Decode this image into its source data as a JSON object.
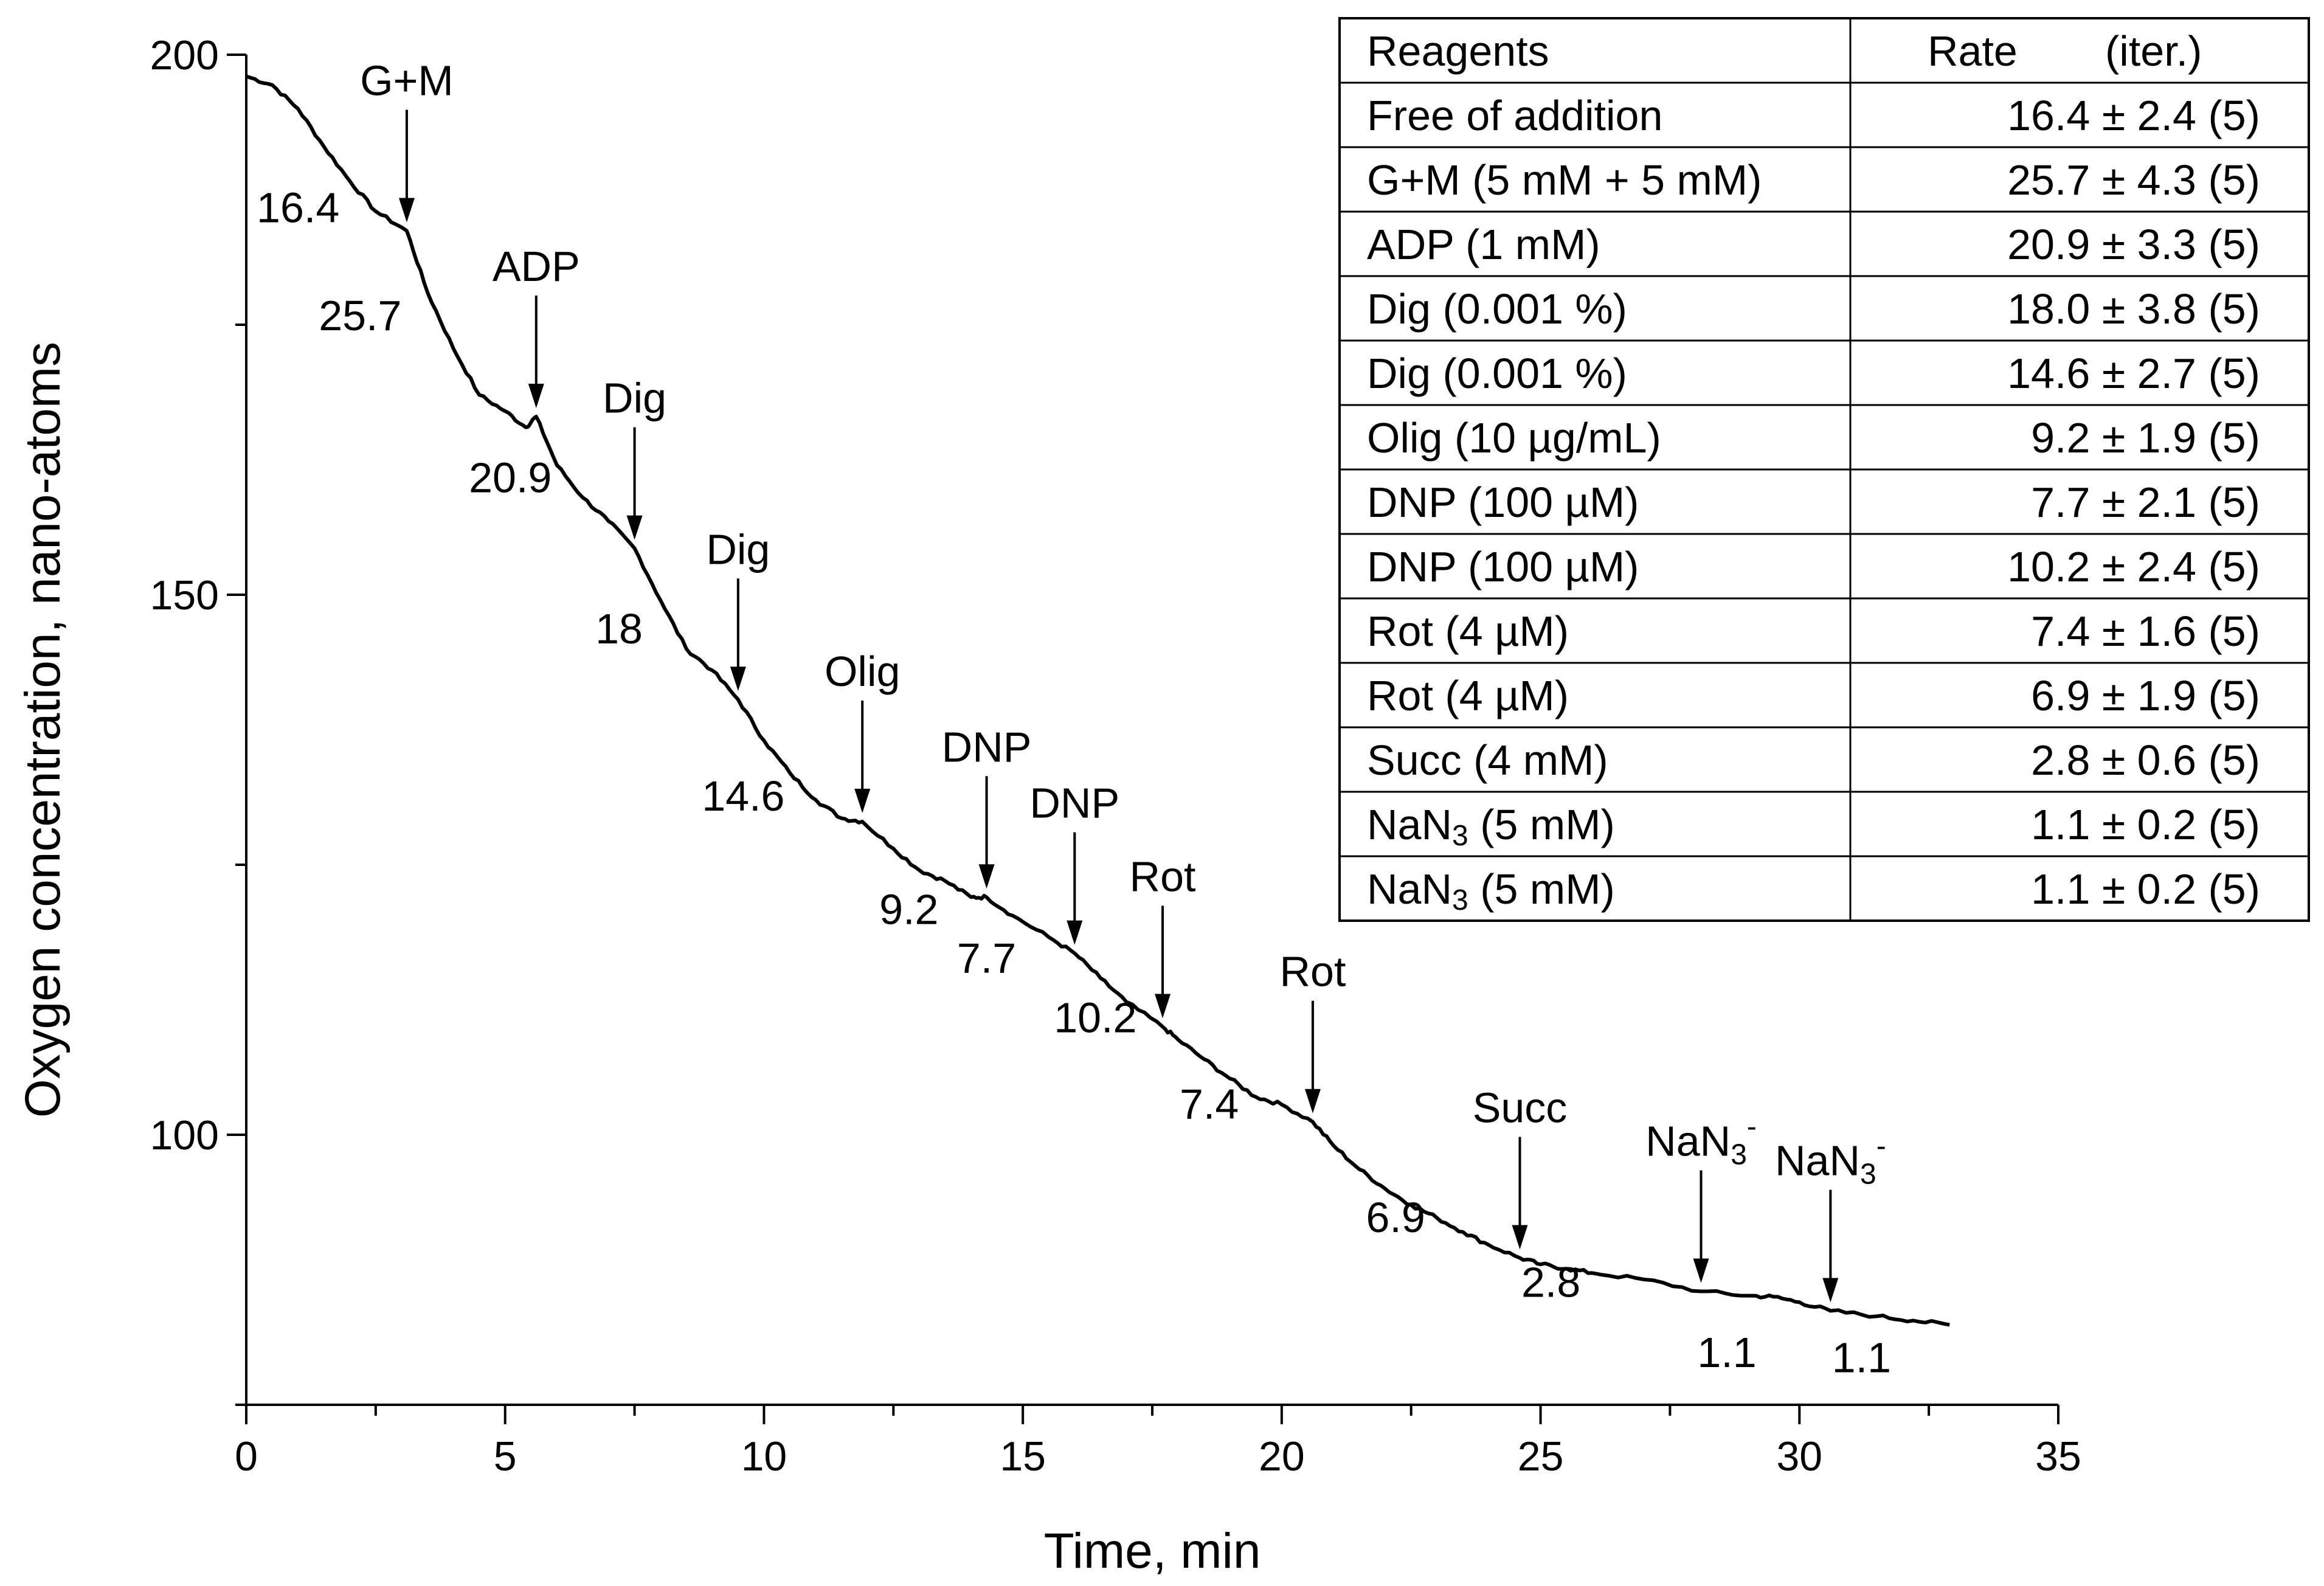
{
  "chart_data": {
    "type": "line",
    "title": "",
    "xlabel": "Time, min",
    "ylabel": "Oxygen concentration, nano-atoms",
    "xlim": [
      0,
      35
    ],
    "ylim": [
      75,
      200
    ],
    "xticks": [
      "0",
      "5",
      "10",
      "15",
      "20",
      "25",
      "30",
      "35"
    ],
    "yticks": [
      "100",
      "150",
      "200"
    ],
    "series": [
      {
        "name": "oxygen",
        "x": [
          0,
          0.5,
          1,
          1.5,
          2,
          2.5,
          3.1,
          3.5,
          4,
          4.5,
          5,
          5.4,
          5.6,
          6,
          6.5,
          7,
          7.5,
          8,
          8.5,
          9,
          9.5,
          10,
          10.5,
          11,
          11.5,
          11.9,
          12.5,
          13,
          13.5,
          14,
          14.3,
          14.8,
          15.5,
          16,
          16.5,
          17,
          17.7,
          18,
          18.5,
          19,
          19.5,
          20,
          20.6,
          21,
          21.5,
          22,
          22.5,
          23,
          23.5,
          24,
          24.6,
          25,
          25.5,
          26,
          27,
          28.1,
          29,
          29.5,
          30,
          30.6,
          31.5,
          32.2,
          32.9
        ],
        "y": [
          198,
          197.2,
          195,
          191.5,
          188.3,
          185.5,
          183.7,
          178,
          172.8,
          168.5,
          167,
          165.5,
          166.5,
          162,
          159,
          156.8,
          154.3,
          149.5,
          145,
          143,
          140.3,
          136.5,
          133.5,
          131,
          129.3,
          129,
          126.5,
          124.5,
          123.5,
          122,
          122,
          120.3,
          118.3,
          116.8,
          114.5,
          112.3,
          110,
          108.8,
          107,
          105.2,
          103.5,
          102.8,
          101.2,
          99,
          96.8,
          95,
          93.5,
          92.3,
          91,
          89.8,
          88.6,
          88,
          87.6,
          87.2,
          86.6,
          85.5,
          85.1,
          85,
          84.5,
          83.7,
          83.2,
          82.8,
          82.4
        ]
      }
    ],
    "annotations": [
      {
        "label": "G+M",
        "sub": "",
        "sup": "",
        "x": 3.1
      },
      {
        "label": "ADP",
        "sub": "",
        "sup": "",
        "x": 5.6
      },
      {
        "label": "Dig",
        "sub": "",
        "sup": "",
        "x": 7.5
      },
      {
        "label": "Dig",
        "sub": "",
        "sup": "",
        "x": 9.5
      },
      {
        "label": "Olig",
        "sub": "",
        "sup": "",
        "x": 11.9
      },
      {
        "label": "DNP",
        "sub": "",
        "sup": "",
        "x": 14.3
      },
      {
        "label": "DNP",
        "sub": "",
        "sup": "",
        "x": 16.0
      },
      {
        "label": "Rot",
        "sub": "",
        "sup": "",
        "x": 17.7
      },
      {
        "label": "Rot",
        "sub": "",
        "sup": "",
        "x": 20.6
      },
      {
        "label": "Succ",
        "sub": "",
        "sup": "",
        "x": 24.6
      },
      {
        "label": "NaN",
        "sub": "3",
        "sup": "-",
        "x": 28.1
      },
      {
        "label": "NaN",
        "sub": "3",
        "sup": "-",
        "x": 30.6
      }
    ],
    "rate_labels": [
      {
        "text": "16.4",
        "x": 1.0,
        "y": 184.5
      },
      {
        "text": "25.7",
        "x": 2.2,
        "y": 174.5
      },
      {
        "text": "20.9",
        "x": 5.1,
        "y": 159.5
      },
      {
        "text": "18",
        "x": 7.2,
        "y": 145.5
      },
      {
        "text": "14.6",
        "x": 9.6,
        "y": 130.0
      },
      {
        "text": "9.2",
        "x": 12.8,
        "y": 119.5
      },
      {
        "text": "7.7",
        "x": 14.3,
        "y": 115.0
      },
      {
        "text": "10.2",
        "x": 16.4,
        "y": 109.5
      },
      {
        "text": "7.4",
        "x": 18.6,
        "y": 101.5
      },
      {
        "text": "6.9",
        "x": 22.2,
        "y": 91.0
      },
      {
        "text": "2.8",
        "x": 25.2,
        "y": 85.0
      },
      {
        "text": "1.1",
        "x": 28.6,
        "y": 78.5
      },
      {
        "text": "1.1",
        "x": 31.2,
        "y": 78.0
      }
    ]
  },
  "table": {
    "headers": [
      "Reagents",
      "Rate",
      "(iter.)"
    ],
    "rows": [
      {
        "reagent": "Free of addition",
        "sub": "",
        "rest": "",
        "rate": "16.4 ± 2.4 (5)"
      },
      {
        "reagent": "G+M (5 mM + 5 mM)",
        "sub": "",
        "rest": "",
        "rate": "25.7 ± 4.3 (5)"
      },
      {
        "reagent": "ADP (1 mM)",
        "sub": "",
        "rest": "",
        "rate": "20.9 ± 3.3 (5)"
      },
      {
        "reagent": "Dig (0.001 %)",
        "sub": "",
        "rest": "",
        "rate": "18.0 ± 3.8 (5)"
      },
      {
        "reagent": "Dig (0.001 %)",
        "sub": "",
        "rest": "",
        "rate": "14.6 ± 2.7 (5)"
      },
      {
        "reagent": "Olig (10 µg/mL)",
        "sub": "",
        "rest": "",
        "rate": "9.2 ± 1.9 (5)"
      },
      {
        "reagent": "DNP (100 µM)",
        "sub": "",
        "rest": "",
        "rate": "7.7 ± 2.1 (5)"
      },
      {
        "reagent": "DNP (100 µM)",
        "sub": "",
        "rest": "",
        "rate": "10.2 ± 2.4 (5)"
      },
      {
        "reagent": "Rot (4 µM)",
        "sub": "",
        "rest": "",
        "rate": "7.4 ± 1.6 (5)"
      },
      {
        "reagent": "Rot (4 µM)",
        "sub": "",
        "rest": "",
        "rate": "6.9 ± 1.9 (5)"
      },
      {
        "reagent": "Succ (4 mM)",
        "sub": "",
        "rest": "",
        "rate": "2.8 ± 0.6 (5)"
      },
      {
        "reagent": "NaN",
        "sub": "3",
        "rest": " (5 mM)",
        "rate": "1.1 ± 0.2 (5)"
      },
      {
        "reagent": "NaN",
        "sub": "3",
        "rest": " (5 mM)",
        "rate": "1.1 ± 0.2 (5)"
      }
    ]
  }
}
